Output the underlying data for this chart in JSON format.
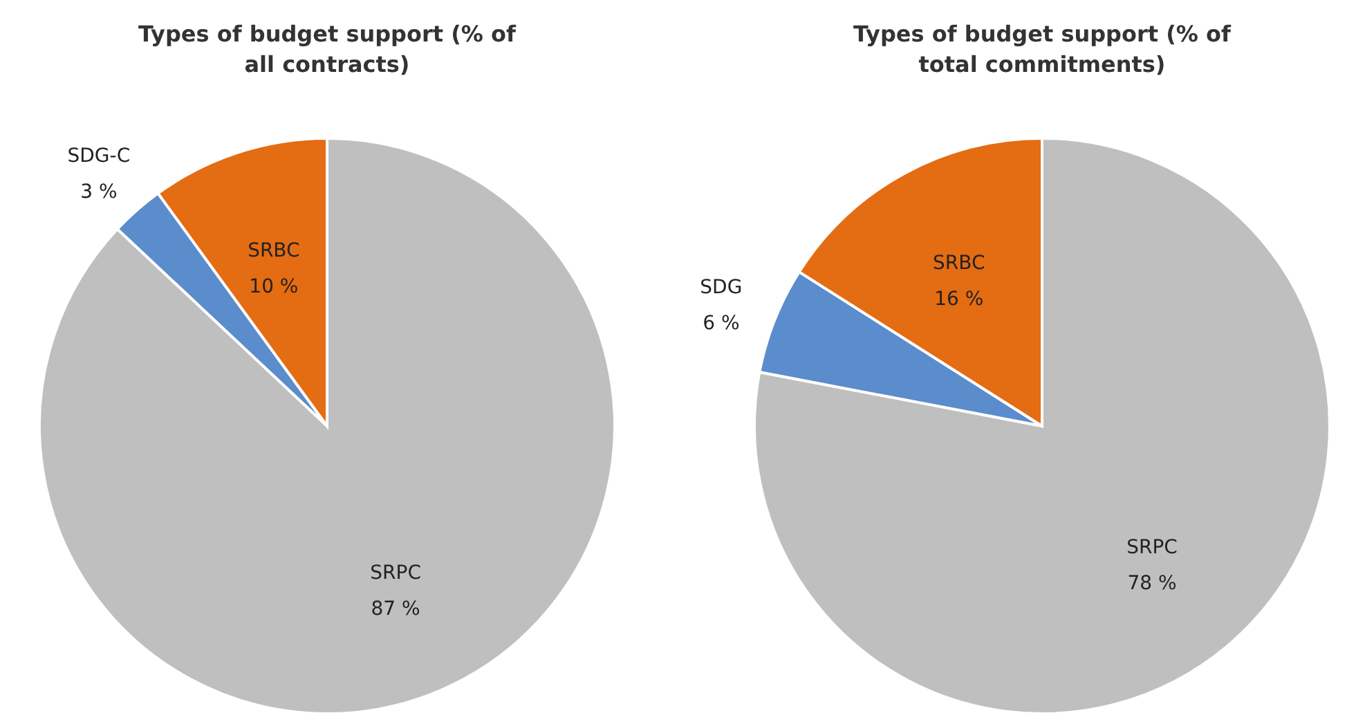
{
  "chart_data": [
    {
      "type": "pie",
      "title": "Types of budget support (% of all contracts)",
      "categories": [
        "SRPC",
        "SDG-C",
        "SRBC"
      ],
      "values": [
        87,
        3,
        10
      ],
      "value_labels": [
        "87 %",
        "3 %",
        "10 %"
      ],
      "colors": [
        "#bfbfbf",
        "#5b8ccc",
        "#e46c12"
      ]
    },
    {
      "type": "pie",
      "title": "Types of budget support (% of total commitments)",
      "categories": [
        "SRPC",
        "SDG",
        "SRBC"
      ],
      "values": [
        78,
        6,
        16
      ],
      "value_labels": [
        "78 %",
        "6 %",
        "16 %"
      ],
      "colors": [
        "#bfbfbf",
        "#5b8ccc",
        "#e46c12"
      ]
    }
  ]
}
